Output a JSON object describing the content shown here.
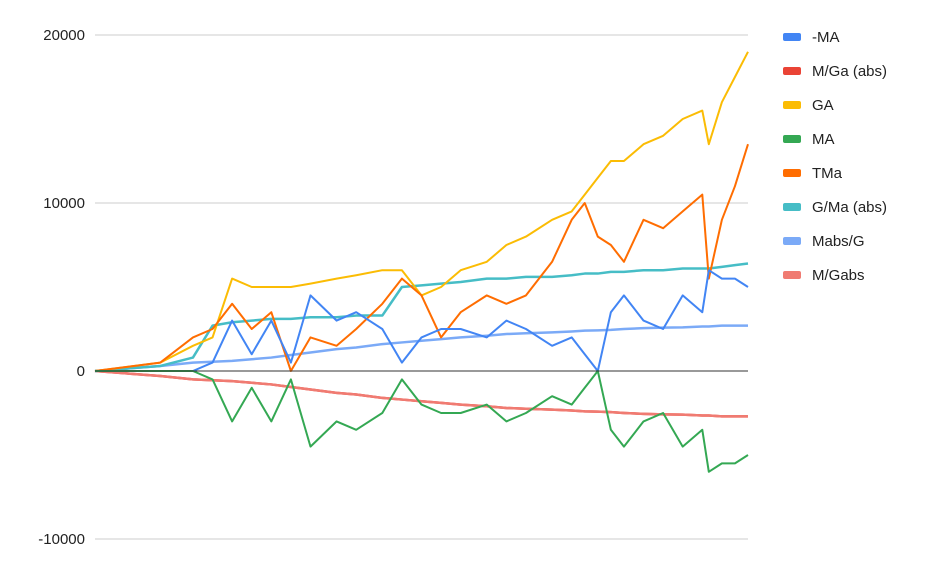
{
  "chart_data": {
    "type": "line",
    "title": "",
    "xlabel": "",
    "ylabel": "",
    "ylim": [
      -10000,
      20000
    ],
    "yticks": [
      -10000,
      0,
      10000,
      20000
    ],
    "ytick_labels": [
      "-10000",
      "0",
      "10000",
      "20000"
    ],
    "grid": true,
    "legend_position": "right",
    "x": [
      0,
      10,
      15,
      18,
      21,
      24,
      27,
      30,
      33,
      37,
      40,
      44,
      47,
      50,
      53,
      56,
      60,
      63,
      66,
      70,
      73,
      75,
      77,
      79,
      81,
      84,
      87,
      90,
      93,
      94,
      96,
      98,
      100
    ],
    "series": [
      {
        "name": "-MA",
        "color": "#4285F4",
        "values": [
          0,
          0,
          0,
          500,
          3000,
          1000,
          3000,
          500,
          4500,
          3000,
          3500,
          2500,
          500,
          2000,
          2500,
          2500,
          2000,
          3000,
          2500,
          1500,
          2000,
          1000,
          0,
          3500,
          4500,
          3000,
          2500,
          4500,
          3500,
          6000,
          5500,
          5500,
          5000
        ]
      },
      {
        "name": "M/Ga (abs)",
        "color": "#EA4335",
        "values": [
          0,
          -300,
          -500,
          -550,
          -600,
          -700,
          -800,
          -950,
          -1100,
          -1300,
          -1400,
          -1600,
          -1700,
          -1800,
          -1900,
          -2000,
          -2100,
          -2200,
          -2250,
          -2300,
          -2350,
          -2400,
          -2420,
          -2450,
          -2500,
          -2550,
          -2580,
          -2600,
          -2650,
          -2650,
          -2700,
          -2700,
          -2700
        ]
      },
      {
        "name": "GA",
        "color": "#FBBC04",
        "values": [
          0,
          500,
          1500,
          2000,
          5500,
          5000,
          5000,
          5000,
          5200,
          5500,
          5700,
          6000,
          6000,
          4500,
          5000,
          6000,
          6500,
          7500,
          8000,
          9000,
          9500,
          10500,
          11500,
          12500,
          12500,
          13500,
          14000,
          15000,
          15500,
          13500,
          16000,
          17500,
          19000
        ]
      },
      {
        "name": "MA",
        "color": "#34A853",
        "values": [
          0,
          0,
          0,
          -500,
          -3000,
          -1000,
          -3000,
          -500,
          -4500,
          -3000,
          -3500,
          -2500,
          -500,
          -2000,
          -2500,
          -2500,
          -2000,
          -3000,
          -2500,
          -1500,
          -2000,
          -1000,
          0,
          -3500,
          -4500,
          -3000,
          -2500,
          -4500,
          -3500,
          -6000,
          -5500,
          -5500,
          -5000
        ]
      },
      {
        "name": "TMa",
        "color": "#FF6D01",
        "values": [
          0,
          500,
          2000,
          2500,
          4000,
          2500,
          3500,
          0,
          2000,
          1500,
          2500,
          4000,
          5500,
          4500,
          2000,
          3500,
          4500,
          4000,
          4500,
          6500,
          9000,
          10000,
          8000,
          7500,
          6500,
          9000,
          8500,
          9500,
          10500,
          5500,
          9000,
          11000,
          13500
        ]
      },
      {
        "name": "G/Ma (abs)",
        "color": "#46BDC6",
        "values": [
          0,
          300,
          800,
          2700,
          2900,
          3000,
          3100,
          3100,
          3200,
          3200,
          3300,
          3300,
          5000,
          5100,
          5200,
          5300,
          5500,
          5500,
          5600,
          5600,
          5700,
          5800,
          5800,
          5900,
          5900,
          6000,
          6000,
          6100,
          6100,
          6100,
          6200,
          6300,
          6400
        ]
      },
      {
        "name": "Mabs/G",
        "color": "#7BAAF7",
        "values": [
          0,
          300,
          500,
          550,
          600,
          700,
          800,
          950,
          1100,
          1300,
          1400,
          1600,
          1700,
          1800,
          1900,
          2000,
          2100,
          2200,
          2250,
          2300,
          2350,
          2400,
          2420,
          2450,
          2500,
          2550,
          2580,
          2600,
          2650,
          2650,
          2700,
          2700,
          2700
        ]
      },
      {
        "name": "M/Gabs",
        "color": "#F07B72",
        "values": [
          0,
          -300,
          -500,
          -550,
          -600,
          -700,
          -800,
          -950,
          -1100,
          -1300,
          -1400,
          -1600,
          -1700,
          -1800,
          -1900,
          -2000,
          -2100,
          -2200,
          -2250,
          -2300,
          -2350,
          -2400,
          -2420,
          -2450,
          -2500,
          -2550,
          -2580,
          -2600,
          -2650,
          -2650,
          -2700,
          -2700,
          -2700
        ]
      }
    ]
  }
}
